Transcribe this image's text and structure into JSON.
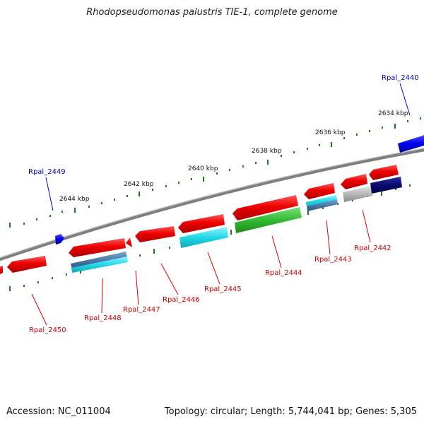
{
  "title": "Rhodopseudomonas palustris TIE-1, complete genome",
  "footer": {
    "accession": "Accession: NC_011004",
    "topology": "Topology: circular; Length: 5,744,041 bp; Genes: 5,305"
  },
  "kbp_labels": [
    "2634 kbp",
    "2636 kbp",
    "2638 kbp",
    "2640 kbp",
    "2642 kbp",
    "2644 kbp"
  ],
  "genes": [
    {
      "id": "Rpal_2440",
      "color": "#0000ee",
      "strand": "forward"
    },
    {
      "id": "Rpal_2442",
      "color": "#dd0000",
      "strand": "reverse"
    },
    {
      "id": "Rpal_2443",
      "color": "#dd0000",
      "strand": "reverse"
    },
    {
      "id": "Rpal_2444",
      "color": "#dd0000",
      "strand": "reverse"
    },
    {
      "id": "Rpal_2445",
      "color": "#dd0000",
      "strand": "reverse"
    },
    {
      "id": "Rpal_2446",
      "color": "#dd0000",
      "strand": "reverse"
    },
    {
      "id": "Rpal_2447",
      "color": "#dd0000",
      "strand": "reverse"
    },
    {
      "id": "Rpal_2448",
      "color": "#dd0000",
      "strand": "reverse"
    },
    {
      "id": "Rpal_2449",
      "color": "#0000ee",
      "strand": "forward"
    },
    {
      "id": "Rpal_2450",
      "color": "#dd0000",
      "strand": "reverse"
    }
  ],
  "colors": {
    "backbone": "#7f7f7f",
    "tick": "#1f7a1f",
    "forward_gene": "#0000ee",
    "reverse_gene": "#dd0000",
    "cyan_feature": "#22d8e8",
    "green_feature": "#33bb33",
    "steelblue_feature": "#4a78a8",
    "navy_feature": "#0a0a6e",
    "gray_feature": "#b8b8b8"
  }
}
